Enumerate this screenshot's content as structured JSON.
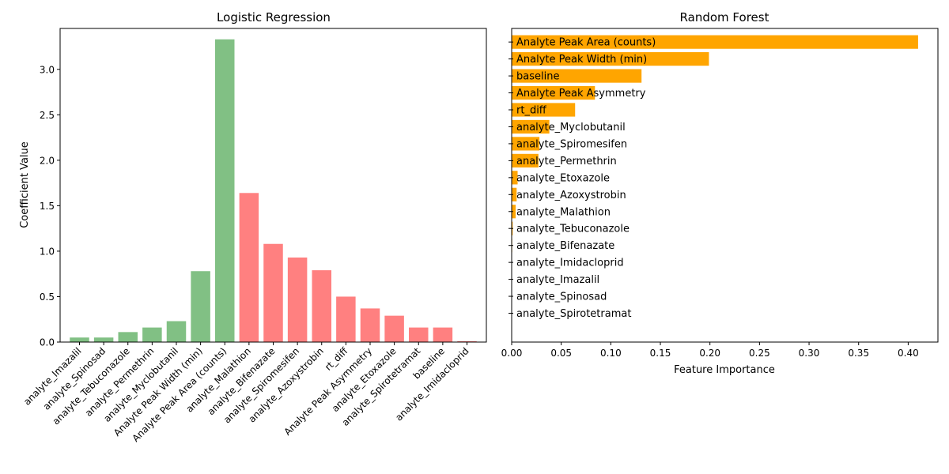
{
  "chart_data": [
    {
      "type": "bar",
      "title": "Logistic Regression",
      "xlabel": "",
      "ylabel": "Coefficient Value",
      "ylim": [
        0,
        3.45
      ],
      "yticks": [
        "0.0",
        "0.5",
        "1.0",
        "1.5",
        "2.0",
        "2.5",
        "3.0"
      ],
      "categories": [
        "analyte_Imazalil",
        "analyte_Spinosad",
        "analyte_Tebuconazole",
        "analyte_Permethrin",
        "analyte_Myclobutanil",
        "Analyte Peak Width (min)",
        "Analyte Peak Area (counts)",
        "analyte_Malathion",
        "analyte_Bifenazate",
        "analyte_Spiromesifen",
        "analyte_Azoxystrobin",
        "rt_diff",
        "Analyte Peak Asymmetry",
        "analyte_Etoxazole",
        "analyte_Spirotetramat",
        "baseline",
        "analyte_Imidacloprid"
      ],
      "values": [
        0.05,
        0.05,
        0.11,
        0.16,
        0.23,
        0.78,
        3.33,
        1.64,
        1.08,
        0.93,
        0.79,
        0.5,
        0.37,
        0.29,
        0.16,
        0.16,
        0.01
      ],
      "colors": [
        "#81c084",
        "#81c084",
        "#81c084",
        "#81c084",
        "#81c084",
        "#81c084",
        "#81c084",
        "#ff8080",
        "#ff8080",
        "#ff8080",
        "#ff8080",
        "#ff8080",
        "#ff8080",
        "#ff8080",
        "#ff8080",
        "#ff8080",
        "#ff8080"
      ],
      "grid": false
    },
    {
      "type": "bar",
      "orientation": "horizontal",
      "title": "Random Forest",
      "xlabel": "Feature Importance",
      "ylabel": "",
      "xlim": [
        0,
        0.43
      ],
      "xticks": [
        "0.00",
        "0.05",
        "0.10",
        "0.15",
        "0.20",
        "0.25",
        "0.30",
        "0.35",
        "0.40"
      ],
      "categories": [
        "Analyte Peak Area (counts)",
        "Analyte Peak Width (min)",
        "baseline",
        "Analyte Peak Asymmetry",
        "rt_diff",
        "analyte_Myclobutanil",
        "analyte_Spiromesifen",
        "analyte_Permethrin",
        "analyte_Etoxazole",
        "analyte_Azoxystrobin",
        "analyte_Malathion",
        "analyte_Tebuconazole",
        "analyte_Bifenazate",
        "analyte_Imidacloprid",
        "analyte_Imazalil",
        "analyte_Spinosad",
        "analyte_Spirotetramat"
      ],
      "values": [
        0.41,
        0.199,
        0.131,
        0.084,
        0.064,
        0.038,
        0.028,
        0.027,
        0.006,
        0.005,
        0.004,
        0.001,
        0.0005,
        0.0004,
        0.0003,
        0.0002,
        0.0001
      ],
      "color": "#ffa500",
      "grid": false
    }
  ]
}
